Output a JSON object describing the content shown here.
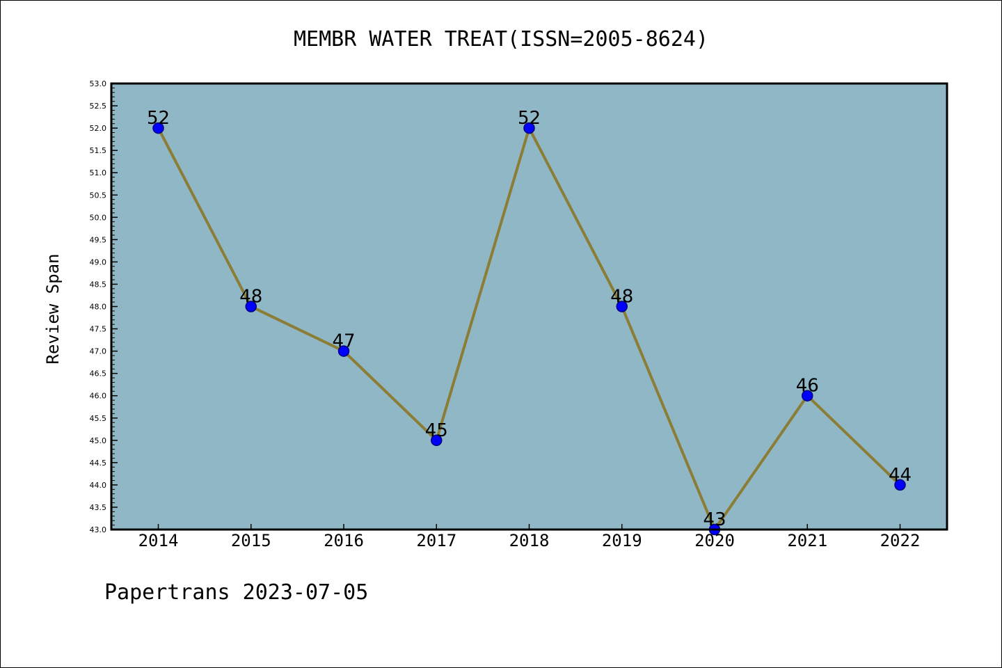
{
  "chart_data": {
    "type": "line",
    "title": "MEMBR WATER TREAT(ISSN=2005-8624)",
    "xlabel": "",
    "ylabel": "Review Span",
    "categories": [
      "2014",
      "2015",
      "2016",
      "2017",
      "2018",
      "2019",
      "2020",
      "2021",
      "2022"
    ],
    "series": [
      {
        "values": [
          52,
          48,
          47,
          45,
          52,
          48,
          43,
          46,
          44
        ]
      }
    ],
    "data_labels": [
      "52",
      "48",
      "47",
      "45",
      "52",
      "48",
      "43",
      "46",
      "44"
    ],
    "ylim": [
      43.0,
      53.0
    ],
    "yticks": [
      "43.0",
      "43.5",
      "44.0",
      "44.5",
      "45.0",
      "45.5",
      "46.0",
      "46.5",
      "47.0",
      "47.5",
      "48.0",
      "48.5",
      "49.0",
      "49.5",
      "50.0",
      "50.5",
      "51.0",
      "51.5",
      "52.0",
      "52.5",
      "53.0"
    ],
    "grid": false,
    "legend": "none",
    "colors": {
      "plot_background": "#8fb7c5",
      "line": "#8b7d35",
      "marker_fill": "#0000ff",
      "marker_edge": "#000080"
    }
  },
  "footer": {
    "text": "Papertrans 2023-07-05"
  }
}
